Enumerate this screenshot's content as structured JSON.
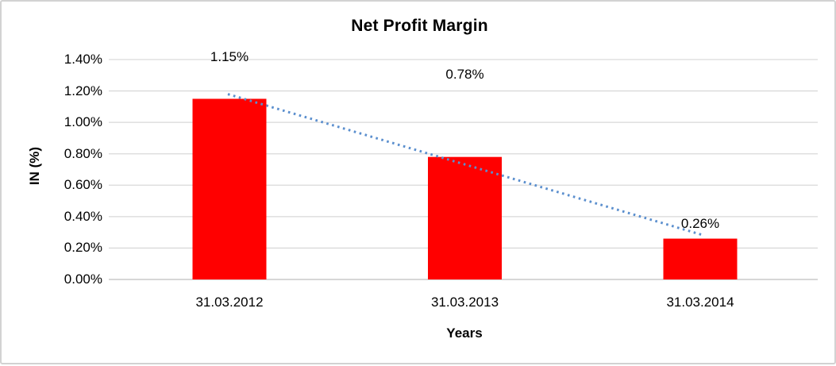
{
  "window": {
    "background": "#ffffff",
    "frame_border_color": "#d2d2d2"
  },
  "chart_data": {
    "type": "bar",
    "title": "Net Profit Margin",
    "xlabel": "Years",
    "ylabel": "IN (%)",
    "categories": [
      "31.03.2012",
      "31.03.2013",
      "31.03.2014"
    ],
    "series": [
      {
        "name": "Net Profit Margin",
        "values": [
          1.15,
          0.78,
          0.26
        ],
        "color": "#ff0000"
      }
    ],
    "data_labels": [
      "1.15%",
      "0.78%",
      "0.26%"
    ],
    "ylim": [
      0,
      1.4
    ],
    "ytick_step": 0.2,
    "ytick_labels": [
      "0.00%",
      "0.20%",
      "0.40%",
      "0.60%",
      "0.80%",
      "1.00%",
      "1.20%",
      "1.40%"
    ],
    "grid": "horizontal",
    "legend": "none",
    "trendline": {
      "type": "linear",
      "style": "dotted",
      "color": "#5b8fce"
    },
    "colors": {
      "bar": "#ff0000",
      "trendline": "#5b8fce",
      "gridline": "#d9d9d9",
      "axis_line": "#bfbfbf",
      "text": "#000000"
    }
  }
}
